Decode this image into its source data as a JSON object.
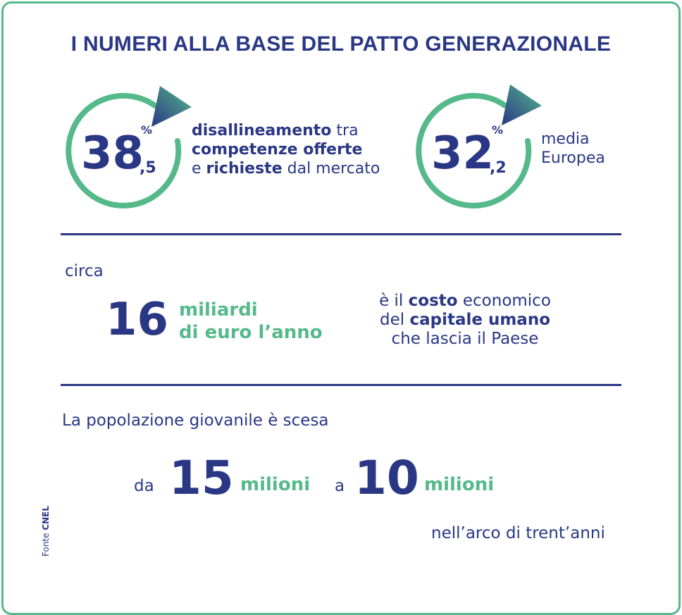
{
  "title": "I NUMERI ALLA BASE DEL PATTO GENERAZIONALE",
  "stat1": {
    "integer": "38",
    "decimal": ",5",
    "percent": "%",
    "desc_bold1": "disallineamento",
    "desc_plain1": " tra",
    "desc_bold2": "competenze offerte",
    "desc_plain2": "e ",
    "desc_bold3": "richieste",
    "desc_plain3": " dal mercato"
  },
  "stat2": {
    "integer": "32",
    "decimal": ",2",
    "percent": "%",
    "desc_line1": "media",
    "desc_line2": "Europea"
  },
  "cost": {
    "prefix": "circa",
    "number": "16",
    "unit_line1": "miliardi",
    "unit_line2": "di euro l’anno",
    "desc_plain1": "è il ",
    "desc_bold1": "costo",
    "desc_plain2": " economico",
    "desc_plain3": "del ",
    "desc_bold2": "capitale umano",
    "desc_plain4": "che lascia il Paese"
  },
  "population": {
    "intro": "La popolazione giovanile è scesa",
    "from_label": "da",
    "from_number": "15",
    "from_unit": "milioni",
    "to_label": "a",
    "to_number": "10",
    "to_unit": "milioni",
    "period": "nell’arco di trent’anni"
  },
  "source": {
    "label": "Fonte ",
    "name": "CNEL"
  },
  "colors": {
    "navy": "#2a3785",
    "green": "#55b98a"
  }
}
